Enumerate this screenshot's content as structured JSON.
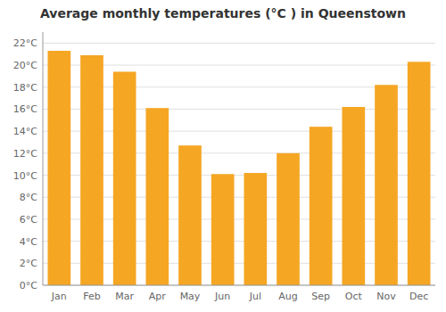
{
  "chart_data": {
    "type": "bar",
    "title": "Average monthly temperatures (°C ) in Queenstown",
    "categories": [
      "Jan",
      "Feb",
      "Mar",
      "Apr",
      "May",
      "Jun",
      "Jul",
      "Aug",
      "Sep",
      "Oct",
      "Nov",
      "Dec"
    ],
    "values": [
      21.3,
      20.9,
      19.4,
      16.1,
      12.7,
      10.1,
      10.2,
      12.0,
      14.4,
      16.2,
      18.2,
      20.3
    ],
    "color": "#F5A623",
    "ylim": [
      0,
      23
    ],
    "yticks": [
      {
        "value": 0,
        "label": "0°C"
      },
      {
        "value": 2,
        "label": "2°C"
      },
      {
        "value": 4,
        "label": "4°C"
      },
      {
        "value": 6,
        "label": "6°C"
      },
      {
        "value": 8,
        "label": "8°C"
      },
      {
        "value": 10,
        "label": "10°C"
      },
      {
        "value": 12,
        "label": "12°C"
      },
      {
        "value": 14,
        "label": "14°C"
      },
      {
        "value": 16,
        "label": "16°C"
      },
      {
        "value": 18,
        "label": "18°C"
      },
      {
        "value": 20,
        "label": "20°C"
      },
      {
        "value": 22,
        "label": "22°C"
      }
    ],
    "grid": true
  }
}
